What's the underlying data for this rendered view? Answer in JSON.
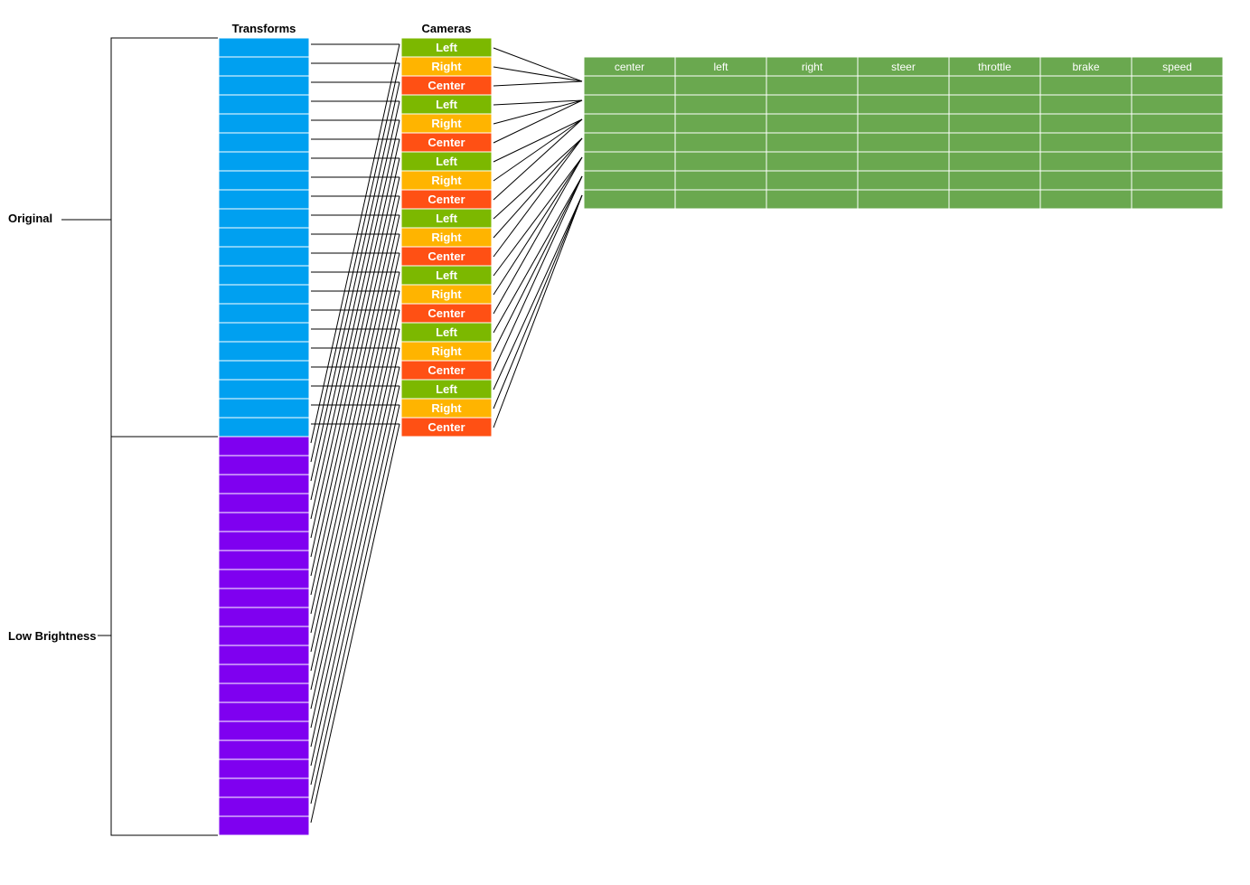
{
  "headers": {
    "transforms": "Transforms",
    "cameras": "Cameras"
  },
  "groups": [
    {
      "label": "Original",
      "color": "#00a0f0",
      "rows": 21
    },
    {
      "label": "Low Brightness",
      "color": "#7f00f0",
      "rows": 21
    }
  ],
  "camera_cycle": [
    {
      "label": "Left",
      "color": "#7cb800"
    },
    {
      "label": "Right",
      "color": "#ffb400"
    },
    {
      "label": "Center",
      "color": "#ff5014"
    }
  ],
  "camera_repeats": 7,
  "table": {
    "columns": [
      "center",
      "left",
      "right",
      "steer",
      "throttle",
      "brake",
      "speed"
    ],
    "body_rows": 7,
    "color": "#6aa84f"
  }
}
